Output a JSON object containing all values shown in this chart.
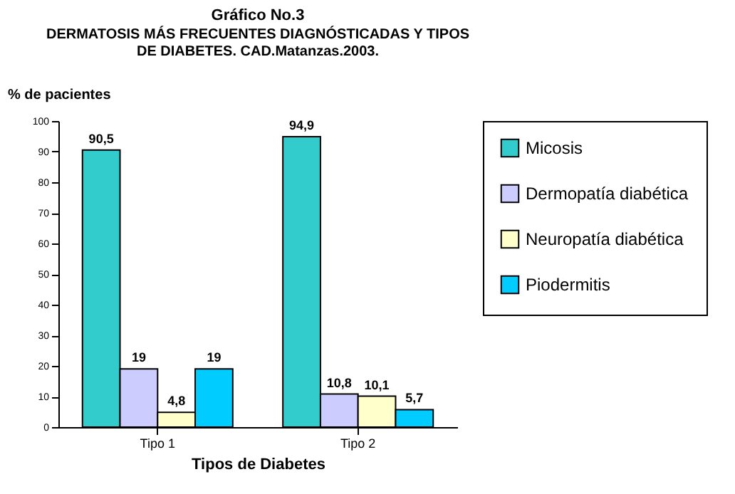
{
  "chart_data": {
    "type": "bar",
    "title": "Gráfico No.3",
    "subtitle": "DERMATOSIS MÁS FRECUENTES DIAGNÓSTICADAS Y TIPOS\nDE DIABETES.  CAD.Matanzas.2003.",
    "xlabel": "Tipos de Diabetes",
    "ylabel": "% de pacientes",
    "categories": [
      "Tipo 1",
      "Tipo 2"
    ],
    "series": [
      {
        "name": "Micosis",
        "color": "#33cccc",
        "values": [
          90.5,
          94.9
        ],
        "value_labels": [
          "90,5",
          "94,9"
        ]
      },
      {
        "name": "Dermopatía diabética",
        "color": "#ccccff",
        "values": [
          19,
          10.8
        ],
        "value_labels": [
          "19",
          "10,8"
        ]
      },
      {
        "name": "Neuropatía diabética",
        "color": "#ffffcc",
        "values": [
          4.8,
          10.1
        ],
        "value_labels": [
          "4,8",
          "10,1"
        ]
      },
      {
        "name": "Piodermitis",
        "color": "#00ccff",
        "values": [
          19,
          5.7
        ],
        "value_labels": [
          "19",
          "5,7"
        ]
      }
    ],
    "ylim": [
      0,
      100
    ],
    "yticks": [
      0,
      10,
      20,
      30,
      40,
      50,
      60,
      70,
      80,
      90,
      100
    ],
    "grid": false,
    "legend": "right"
  }
}
